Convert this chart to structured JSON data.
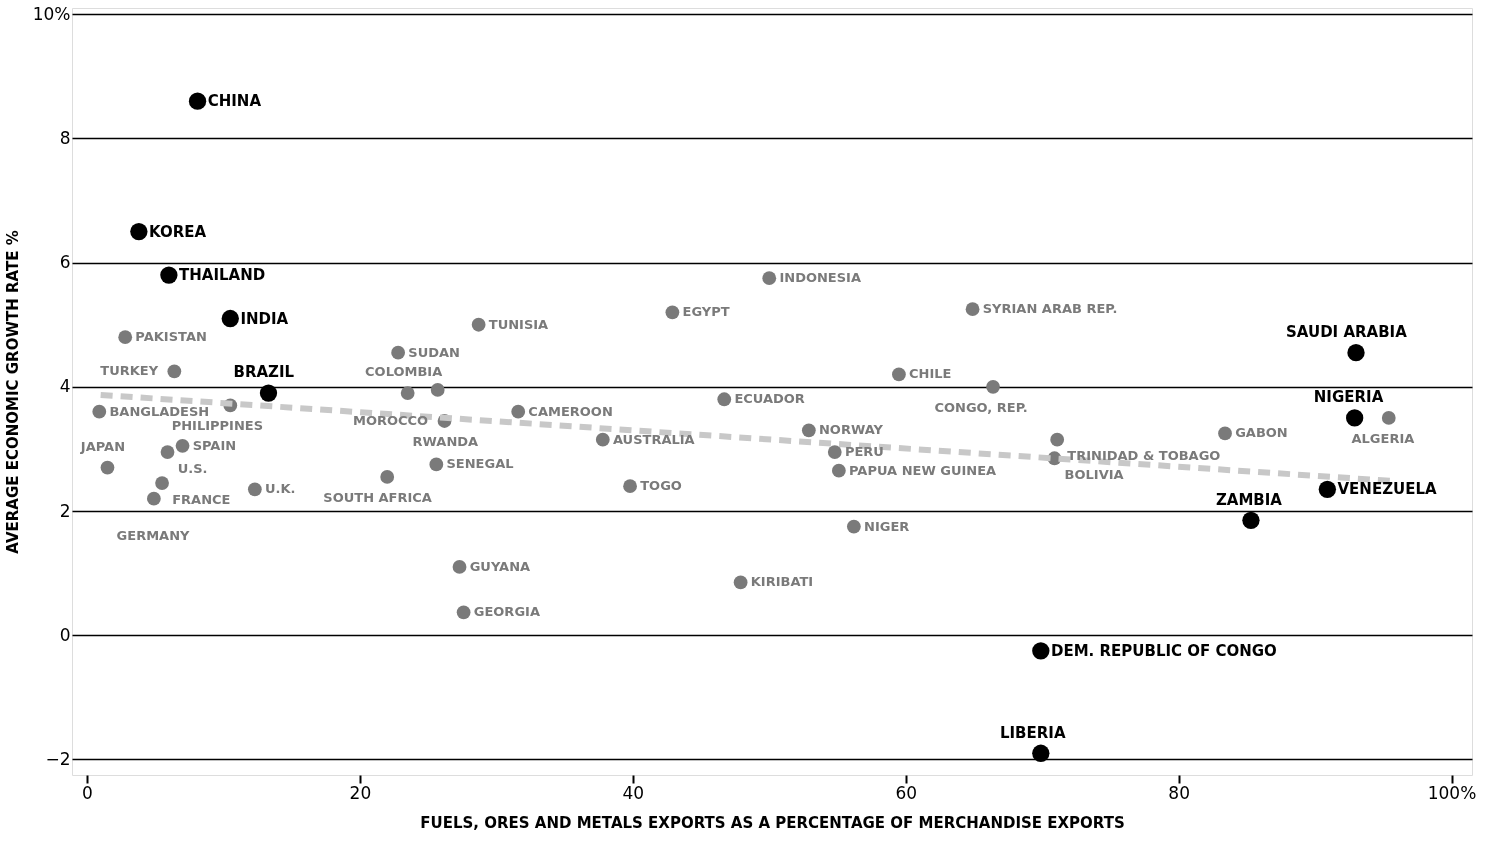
{
  "chart_data": {
    "type": "scatter",
    "xlabel": "FUELS, ORES AND METALS EXPORTS AS A PERCENTAGE OF MERCHANDISE EXPORTS",
    "ylabel": "AVERAGE ECONOMIC GROWTH RATE %",
    "xlim": [
      -1.1,
      101.5
    ],
    "ylim": [
      -2.25,
      10.1
    ],
    "xticks": [
      0,
      20,
      40,
      60,
      80,
      {
        "value": 100,
        "label": "100%"
      }
    ],
    "yticks": [
      -2,
      0,
      2,
      4,
      6,
      8,
      {
        "value": 10,
        "label": "10%"
      }
    ],
    "grid": "y",
    "marker": "circle",
    "legend": false,
    "series": [
      {
        "color": "#000000",
        "x": [
          8.1,
          3.8,
          6.0,
          10.5,
          13.3,
          93.0,
          92.9,
          90.9,
          85.3,
          69.9,
          69.9
        ],
        "values": [
          8.6,
          6.5,
          5.8,
          5.1,
          3.9,
          4.55,
          3.5,
          2.35,
          1.85,
          -0.25,
          -1.9
        ]
      },
      {
        "color": "#7a7a7a",
        "x": [
          2.8,
          6.4,
          10.5,
          5.9,
          7.0,
          0.9,
          1.5,
          5.5,
          4.9,
          12.3,
          22.8,
          28.7,
          23.5,
          25.7,
          26.2,
          31.6,
          25.6,
          22.0,
          27.3,
          27.6,
          37.8,
          39.8,
          42.9,
          46.7,
          50.0,
          47.9,
          52.9,
          54.8,
          55.1,
          56.2,
          59.5,
          64.9,
          66.4,
          71.1,
          70.9,
          83.4,
          95.4
        ],
        "values": [
          4.8,
          4.25,
          3.7,
          2.95,
          3.05,
          3.6,
          2.7,
          2.45,
          2.2,
          2.35,
          4.55,
          5.0,
          3.9,
          3.95,
          3.45,
          3.6,
          2.75,
          2.55,
          1.1,
          0.37,
          3.15,
          2.4,
          5.2,
          3.8,
          5.75,
          0.85,
          3.3,
          2.95,
          2.65,
          1.75,
          4.2,
          5.25,
          4.0,
          3.15,
          2.85,
          3.25,
          3.5
        ]
      },
      {
        "type": "line",
        "marker": "none",
        "color": "#c8c8c8",
        "line_style": "dashed",
        "x": [
          1,
          96
        ],
        "values": [
          3.87,
          2.48
        ]
      }
    ],
    "annotations": [
      {
        "text": "CHINA",
        "x": 8.1,
        "y": 8.6
      },
      {
        "text": "KOREA",
        "x": 3.8,
        "y": 6.5
      },
      {
        "text": "THAILAND",
        "x": 6.0,
        "y": 5.8
      },
      {
        "text": "INDIA",
        "x": 10.5,
        "y": 5.1
      },
      {
        "text": "BRAZIL",
        "x": 13.3,
        "y": 3.9
      },
      {
        "text": "SAUDI ARABIA",
        "x": 93.0,
        "y": 4.55
      },
      {
        "text": "NIGERIA",
        "x": 92.9,
        "y": 3.5
      },
      {
        "text": "VENEZUELA",
        "x": 90.9,
        "y": 2.35
      },
      {
        "text": "ZAMBIA",
        "x": 85.3,
        "y": 1.85
      },
      {
        "text": "DEM. REPUBLIC OF CONGO",
        "x": 69.9,
        "y": -0.25
      },
      {
        "text": "LIBERIA",
        "x": 69.9,
        "y": -1.9
      },
      {
        "text": "PAKISTAN",
        "x": 2.8,
        "y": 4.8
      },
      {
        "text": "TURKEY",
        "x": 6.4,
        "y": 4.25
      },
      {
        "text": "PHILIPPINES",
        "x": 10.5,
        "y": 3.7
      },
      {
        "text": "U.S.",
        "x": 5.9,
        "y": 2.95
      },
      {
        "text": "SPAIN",
        "x": 7.0,
        "y": 3.05
      },
      {
        "text": "BANGLADESH",
        "x": 0.9,
        "y": 3.6
      },
      {
        "text": "JAPAN",
        "x": 1.5,
        "y": 2.7
      },
      {
        "text": "FRANCE",
        "x": 5.5,
        "y": 2.45
      },
      {
        "text": "GERMANY",
        "x": 4.9,
        "y": 2.2
      },
      {
        "text": "U.K.",
        "x": 12.3,
        "y": 2.35
      },
      {
        "text": "SUDAN",
        "x": 22.8,
        "y": 4.55
      },
      {
        "text": "TUNISIA",
        "x": 28.7,
        "y": 5.0
      },
      {
        "text": "COLOMBIA",
        "x": 23.5,
        "y": 3.9
      },
      {
        "text": "MOROCCO",
        "x": 25.7,
        "y": 3.95
      },
      {
        "text": "RWANDA",
        "x": 26.2,
        "y": 3.45
      },
      {
        "text": "CAMEROON",
        "x": 31.6,
        "y": 3.6
      },
      {
        "text": "SENEGAL",
        "x": 25.6,
        "y": 2.75
      },
      {
        "text": "SOUTH AFRICA",
        "x": 22.0,
        "y": 2.55
      },
      {
        "text": "GUYANA",
        "x": 27.3,
        "y": 1.1
      },
      {
        "text": "GEORGIA",
        "x": 27.6,
        "y": 0.37
      },
      {
        "text": "AUSTRALIA",
        "x": 37.8,
        "y": 3.15
      },
      {
        "text": "TOGO",
        "x": 39.8,
        "y": 2.4
      },
      {
        "text": "EGYPT",
        "x": 42.9,
        "y": 5.2
      },
      {
        "text": "ECUADOR",
        "x": 46.7,
        "y": 3.8
      },
      {
        "text": "INDONESIA",
        "x": 50.0,
        "y": 5.75
      },
      {
        "text": "KIRIBATI",
        "x": 47.9,
        "y": 0.85
      },
      {
        "text": "NORWAY",
        "x": 52.9,
        "y": 3.3
      },
      {
        "text": "PERU",
        "x": 54.8,
        "y": 2.95
      },
      {
        "text": "PAPUA NEW GUINEA",
        "x": 55.1,
        "y": 2.65
      },
      {
        "text": "NIGER",
        "x": 56.2,
        "y": 1.75
      },
      {
        "text": "CHILE",
        "x": 59.5,
        "y": 4.2
      },
      {
        "text": "SYRIAN ARAB REP.",
        "x": 64.9,
        "y": 5.25
      },
      {
        "text": "CONGO, REP.",
        "x": 66.4,
        "y": 4.0
      },
      {
        "text": "TRINIDAD & TOBAGO",
        "x": 71.1,
        "y": 3.15
      },
      {
        "text": "BOLIVIA",
        "x": 70.9,
        "y": 2.85
      },
      {
        "text": "GABON",
        "x": 83.4,
        "y": 3.25
      },
      {
        "text": "ALGERIA",
        "x": 95.4,
        "y": 3.5
      }
    ]
  }
}
